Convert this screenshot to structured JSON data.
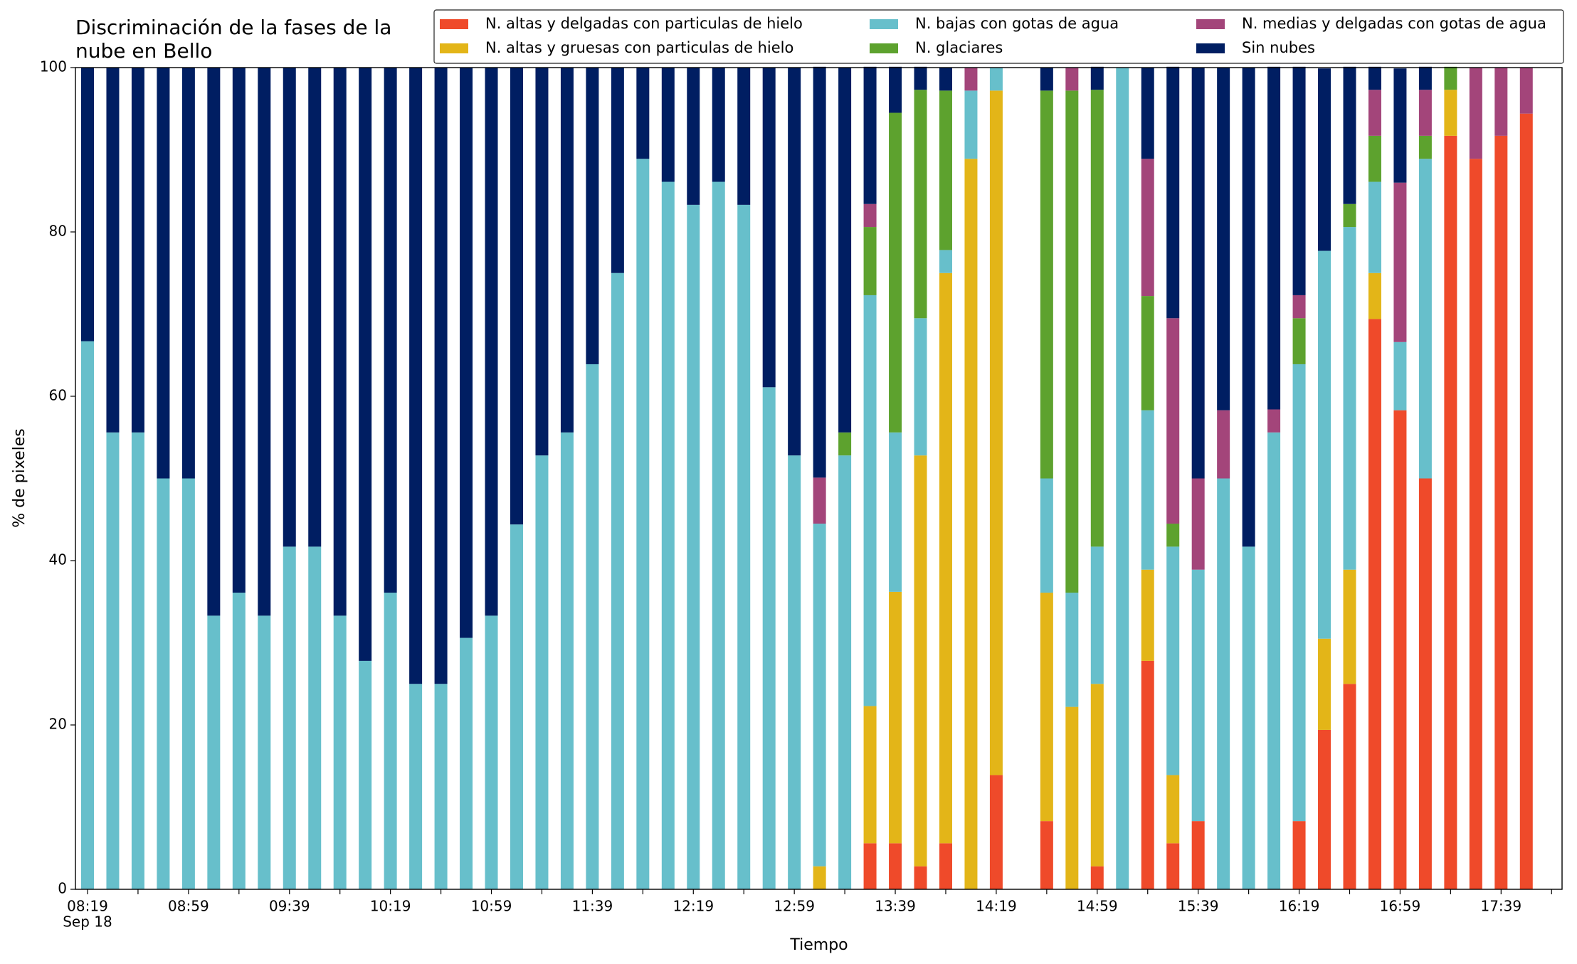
{
  "chart_data": {
    "type": "stacked_bar",
    "title": "Discriminación de la fases de la\nnube en Bello",
    "xlabel": "Tiempo",
    "ylabel": "% de pixeles",
    "x_sublabel": "Sep 18",
    "categories": [
      "08:19",
      null,
      null,
      null,
      "08:59",
      null,
      null,
      null,
      "09:39",
      null,
      null,
      null,
      "10:19",
      null,
      null,
      null,
      "10:59",
      null,
      null,
      null,
      "11:39",
      null,
      null,
      null,
      "12:19",
      null,
      null,
      null,
      "12:59",
      null,
      null,
      null,
      "13:39",
      null,
      null,
      null,
      "14:19",
      null,
      null,
      null,
      "14:59",
      null,
      null,
      null,
      "15:39",
      null,
      null,
      null,
      "16:19",
      null,
      null,
      null,
      "16:59",
      null,
      null,
      null,
      "17:39",
      null
    ],
    "series": [
      {
        "name": "N. altas y delgadas con particulas de hielo",
        "color": "#ef4a2a",
        "values": [
          0,
          0,
          0,
          0,
          0,
          0,
          0,
          0,
          0,
          0,
          0,
          0,
          0,
          0,
          0,
          0,
          0,
          0,
          0,
          0,
          0,
          0,
          0,
          0,
          0,
          0,
          0,
          0,
          0,
          0,
          0,
          5.6,
          5.6,
          2.8,
          5.6,
          0,
          13.9,
          null,
          8.3,
          0,
          2.8,
          0,
          27.8,
          5.6,
          8.3,
          0,
          0,
          0,
          8.3,
          19.4,
          25,
          69.4,
          58.3,
          50,
          91.7,
          88.9,
          91.7,
          94.4
        ]
      },
      {
        "name": "N. altas y gruesas con particulas de hielo",
        "color": "#e3b518",
        "values": [
          0,
          0,
          0,
          0,
          0,
          0,
          0,
          0,
          0,
          0,
          0,
          0,
          0,
          0,
          0,
          0,
          0,
          0,
          0,
          0,
          0,
          0,
          0,
          0,
          0,
          0,
          0,
          0,
          0,
          2.8,
          0,
          16.7,
          30.6,
          50,
          69.4,
          88.9,
          83.3,
          null,
          27.8,
          22.2,
          22.2,
          0,
          11.1,
          8.3,
          0,
          0,
          0,
          0,
          0,
          11.1,
          13.9,
          5.6,
          0,
          0,
          5.6,
          0,
          0,
          0
        ]
      },
      {
        "name": "N. bajas con gotas de agua",
        "color": "#67bfcb",
        "values": [
          66.7,
          55.6,
          55.6,
          50,
          50,
          33.3,
          36.1,
          33.3,
          41.7,
          41.7,
          33.3,
          27.8,
          36.1,
          25,
          25,
          30.6,
          33.3,
          44.4,
          52.8,
          55.6,
          63.9,
          75,
          88.9,
          86.1,
          83.3,
          86.1,
          83.3,
          61.1,
          52.8,
          41.7,
          52.8,
          50,
          19.4,
          16.7,
          2.8,
          8.3,
          2.8,
          null,
          13.9,
          13.9,
          16.7,
          100,
          19.4,
          27.8,
          30.6,
          50,
          41.7,
          55.6,
          55.6,
          47.2,
          41.7,
          11.1,
          8.3,
          38.9,
          0,
          0,
          0,
          0
        ]
      },
      {
        "name": "N. glaciares",
        "color": "#5da22e",
        "values": [
          0,
          0,
          0,
          0,
          0,
          0,
          0,
          0,
          0,
          0,
          0,
          0,
          0,
          0,
          0,
          0,
          0,
          0,
          0,
          0,
          0,
          0,
          0,
          0,
          0,
          0,
          0,
          0,
          0,
          0,
          2.8,
          8.3,
          38.9,
          27.8,
          19.4,
          0,
          0,
          null,
          47.2,
          61.1,
          55.6,
          0,
          13.9,
          2.8,
          0,
          0,
          0,
          0,
          5.6,
          0,
          2.8,
          5.6,
          0,
          2.8,
          2.8,
          0,
          0,
          0
        ]
      },
      {
        "name": "N. medias y delgadas con gotas de agua",
        "color": "#a3457a",
        "values": [
          0,
          0,
          0,
          0,
          0,
          0,
          0,
          0,
          0,
          0,
          0,
          0,
          0,
          0,
          0,
          0,
          0,
          0,
          0,
          0,
          0,
          0,
          0,
          0,
          0,
          0,
          0,
          0,
          0,
          5.6,
          0,
          2.8,
          0,
          0,
          0,
          2.8,
          0,
          null,
          0,
          2.8,
          0,
          0,
          16.7,
          25,
          11.1,
          8.3,
          0,
          2.8,
          2.8,
          0,
          0,
          5.6,
          19.4,
          5.6,
          0,
          11.1,
          8.3,
          5.6
        ]
      },
      {
        "name": "Sin nubes",
        "color": "#001e62",
        "values": [
          33.3,
          44.4,
          44.4,
          50,
          50,
          66.7,
          63.9,
          66.7,
          58.3,
          58.3,
          66.7,
          72.2,
          63.9,
          75,
          75,
          69.4,
          66.7,
          55.6,
          47.2,
          44.4,
          36.1,
          25,
          11.1,
          13.9,
          16.7,
          13.9,
          16.7,
          38.9,
          47.2,
          50,
          44.4,
          16.7,
          5.6,
          2.8,
          2.8,
          0,
          0,
          null,
          2.8,
          0,
          2.8,
          0,
          11.1,
          30.6,
          50,
          41.7,
          58.3,
          41.7,
          27.8,
          22.2,
          16.7,
          2.8,
          13.9,
          2.8,
          0,
          0,
          0,
          0
        ]
      }
    ],
    "ylim": [
      0,
      100
    ],
    "yticks": [
      0,
      20,
      40,
      60,
      80,
      100
    ],
    "grid": false
  }
}
